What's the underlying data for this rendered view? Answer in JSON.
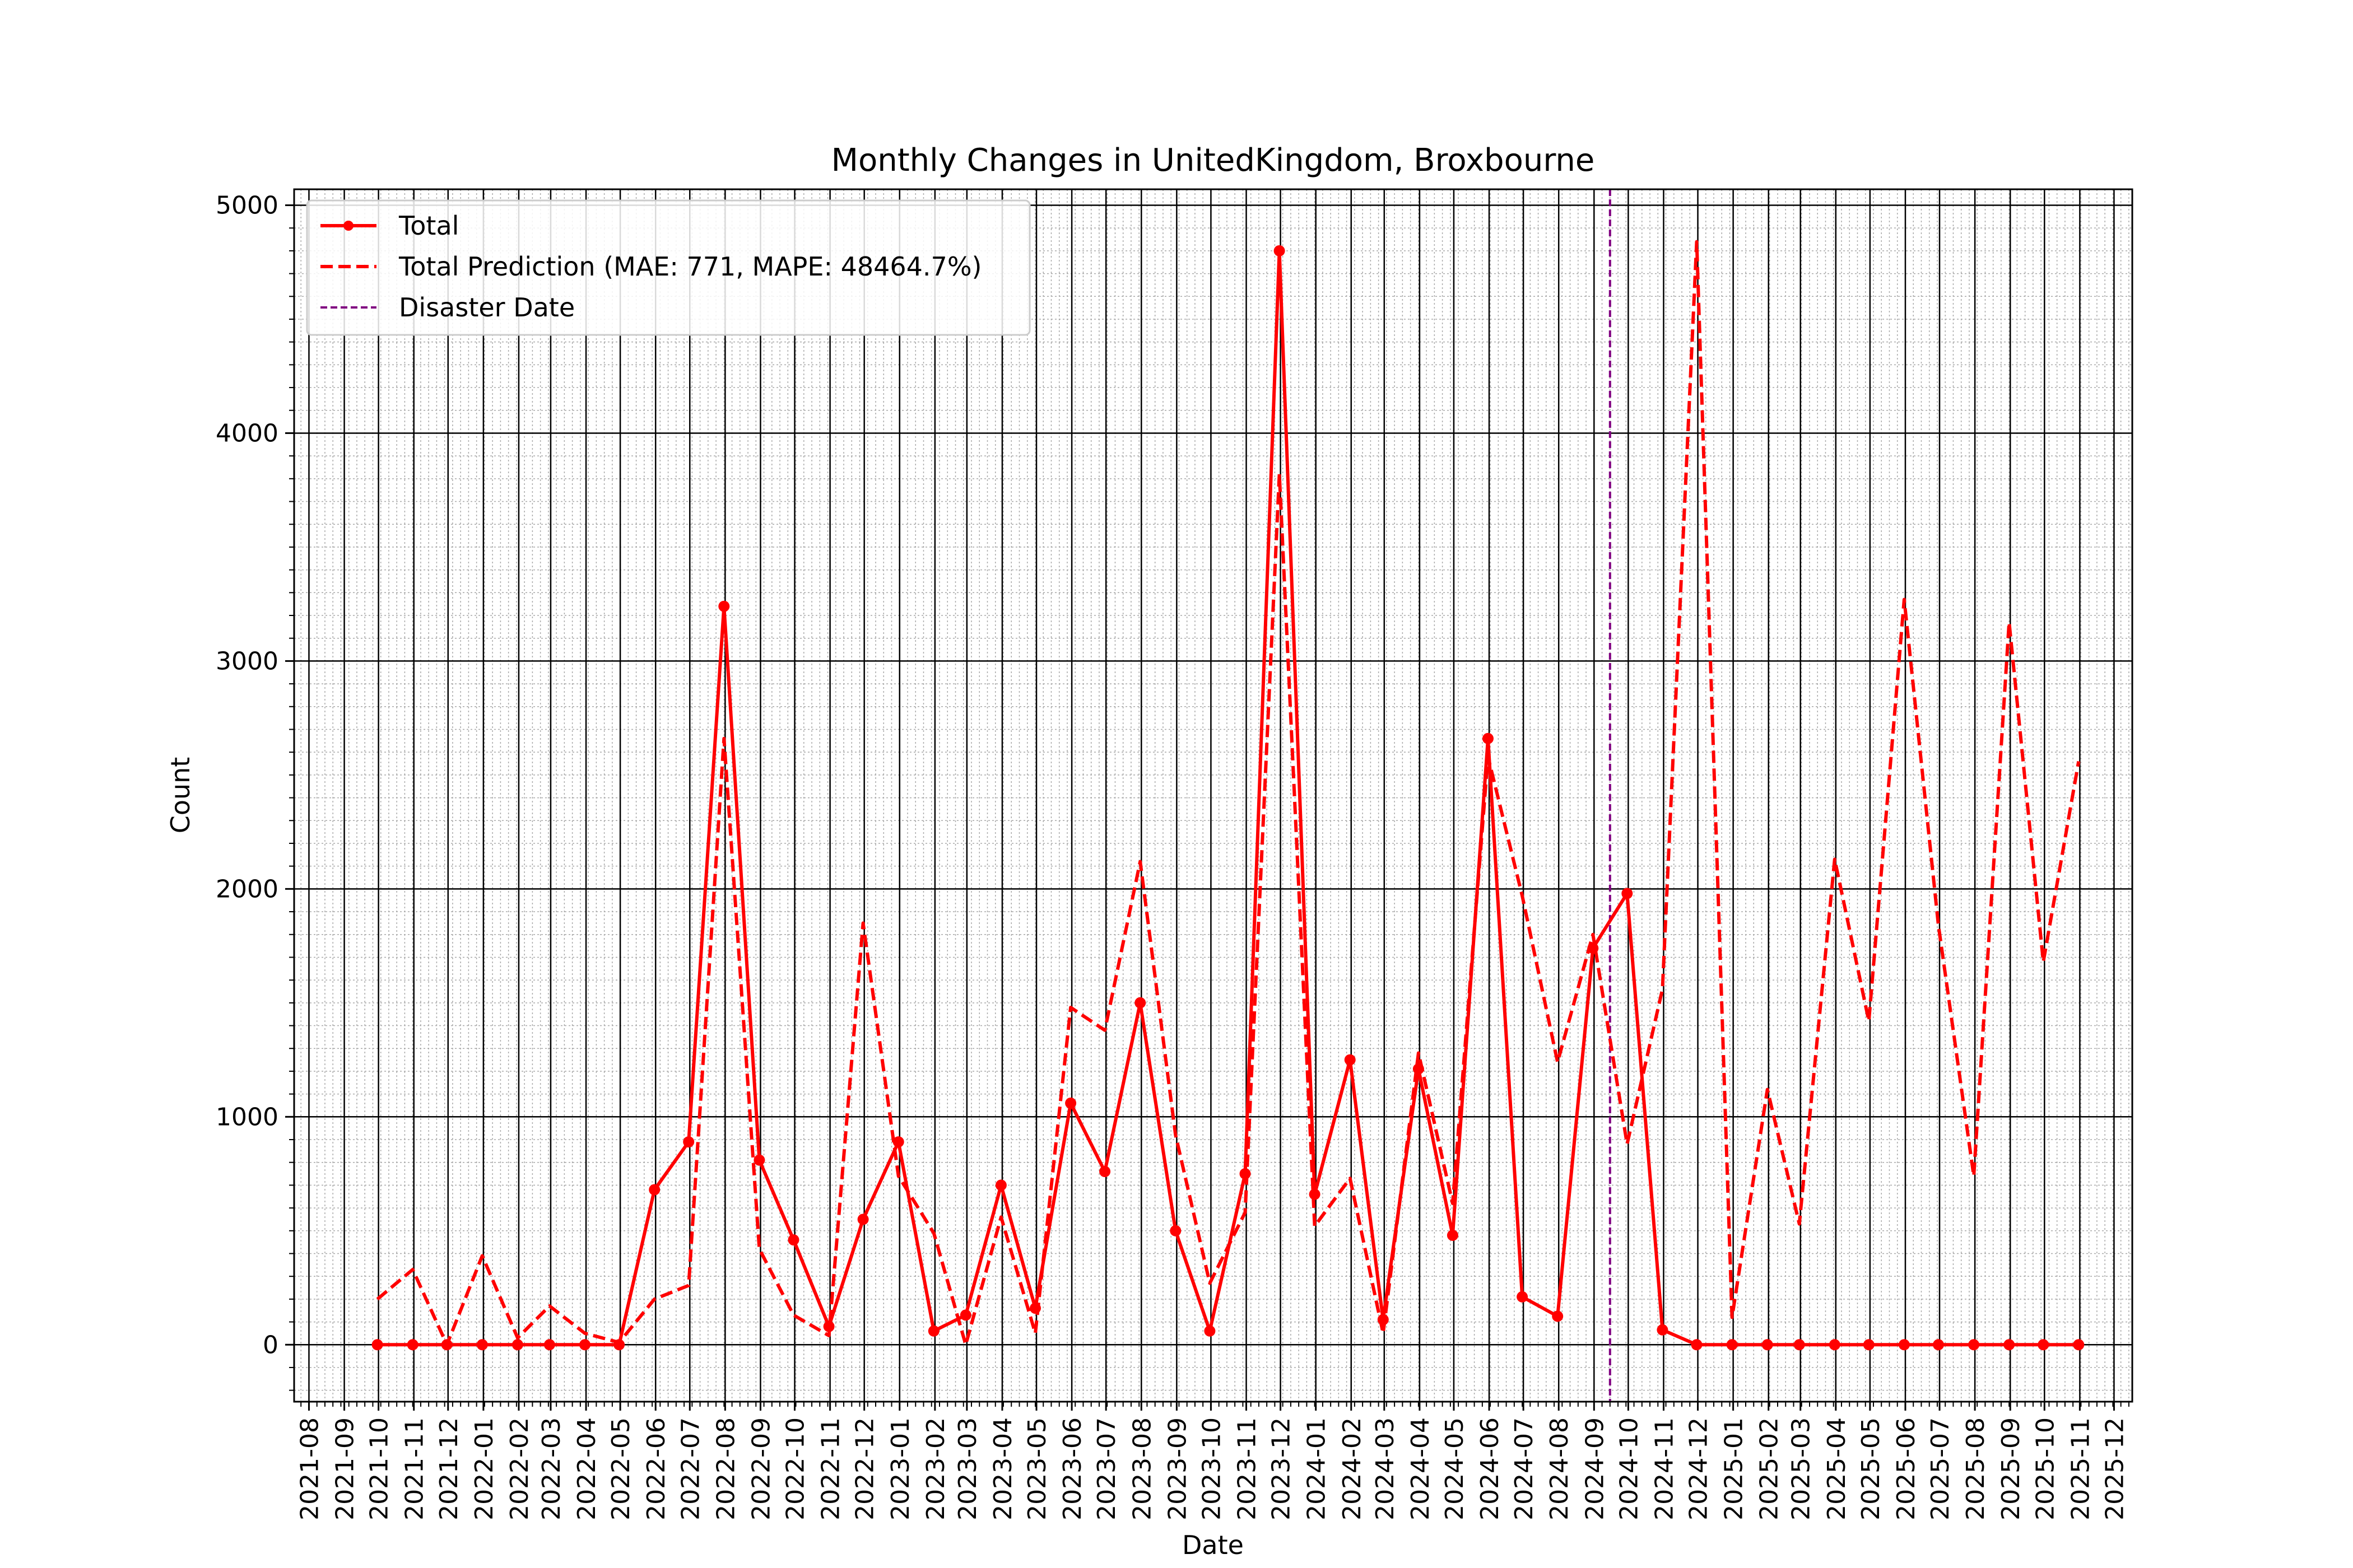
{
  "chart_data": {
    "type": "line",
    "title": "Monthly Changes in UnitedKingdom, Broxbourne",
    "xlabel": "Date",
    "ylabel": "Count",
    "ylim": [
      -250,
      5070
    ],
    "yticks": [
      0,
      1000,
      2000,
      3000,
      4000,
      5000
    ],
    "xlim": [
      "2021-07-19",
      "2025-12-17"
    ],
    "xticks": [
      "2021-08",
      "2021-09",
      "2021-10",
      "2021-11",
      "2021-12",
      "2022-01",
      "2022-02",
      "2022-03",
      "2022-04",
      "2022-05",
      "2022-06",
      "2022-07",
      "2022-08",
      "2022-09",
      "2022-10",
      "2022-11",
      "2022-12",
      "2023-01",
      "2023-02",
      "2023-03",
      "2023-04",
      "2023-05",
      "2023-06",
      "2023-07",
      "2023-08",
      "2023-09",
      "2023-10",
      "2023-11",
      "2023-12",
      "2024-01",
      "2024-02",
      "2024-03",
      "2024-04",
      "2024-05",
      "2024-06",
      "2024-07",
      "2024-08",
      "2024-09",
      "2024-10",
      "2024-11",
      "2024-12",
      "2025-01",
      "2025-02",
      "2025-03",
      "2025-04",
      "2025-05",
      "2025-06",
      "2025-07",
      "2025-08",
      "2025-09",
      "2025-10",
      "2025-11",
      "2025-12"
    ],
    "grid": true,
    "legend_position": "upper-left",
    "series": [
      {
        "name": "Total",
        "style": "solid-marker",
        "color": "#ff0000",
        "x": [
          "2021-09-30",
          "2021-10-31",
          "2021-11-30",
          "2021-12-31",
          "2022-01-31",
          "2022-02-28",
          "2022-03-31",
          "2022-04-30",
          "2022-05-31",
          "2022-06-30",
          "2022-07-31",
          "2022-08-31",
          "2022-09-30",
          "2022-10-31",
          "2022-11-30",
          "2022-12-31",
          "2023-01-31",
          "2023-02-28",
          "2023-03-31",
          "2023-04-30",
          "2023-05-31",
          "2023-06-30",
          "2023-07-31",
          "2023-08-31",
          "2023-09-30",
          "2023-10-31",
          "2023-11-30",
          "2023-12-31",
          "2024-01-31",
          "2024-02-29",
          "2024-03-31",
          "2024-04-30",
          "2024-05-31",
          "2024-06-30",
          "2024-07-31",
          "2024-08-31",
          "2024-09-30",
          "2024-10-31",
          "2024-11-30",
          "2024-12-31",
          "2025-01-31",
          "2025-02-28",
          "2025-03-31",
          "2025-04-30",
          "2025-05-31",
          "2025-06-30",
          "2025-07-31",
          "2025-08-31",
          "2025-09-30",
          "2025-10-31"
        ],
        "y": [
          0,
          0,
          0,
          0,
          0,
          0,
          0,
          0,
          680,
          890,
          3240,
          810,
          460,
          80,
          550,
          890,
          60,
          130,
          700,
          160,
          1060,
          760,
          1500,
          500,
          60,
          750,
          4800,
          660,
          1250,
          110,
          1210,
          480,
          2660,
          210,
          125,
          1740,
          1980,
          65,
          0,
          0,
          0,
          0,
          0,
          0,
          0,
          0,
          0,
          0,
          0,
          0
        ]
      },
      {
        "name": "Total Prediction (MAE: 771, MAPE: 48464.7%)",
        "style": "dashed",
        "color": "#ff0000",
        "x": [
          "2021-09-30",
          "2021-10-31",
          "2021-11-30",
          "2021-12-31",
          "2022-01-31",
          "2022-02-28",
          "2022-03-31",
          "2022-04-30",
          "2022-05-31",
          "2022-06-30",
          "2022-07-31",
          "2022-08-31",
          "2022-09-30",
          "2022-10-31",
          "2022-11-30",
          "2022-12-31",
          "2023-01-31",
          "2023-02-28",
          "2023-03-31",
          "2023-04-30",
          "2023-05-31",
          "2023-06-30",
          "2023-07-31",
          "2023-08-31",
          "2023-09-30",
          "2023-10-31",
          "2023-11-30",
          "2023-12-31",
          "2024-01-31",
          "2024-02-29",
          "2024-03-31",
          "2024-04-30",
          "2024-05-31",
          "2024-06-30",
          "2024-07-31",
          "2024-08-31",
          "2024-09-30",
          "2024-10-31",
          "2024-11-30",
          "2024-12-31",
          "2025-01-31",
          "2025-02-28",
          "2025-03-31",
          "2025-04-30",
          "2025-05-31",
          "2025-06-30",
          "2025-07-31",
          "2025-08-31",
          "2025-09-30",
          "2025-10-31"
        ],
        "y": [
          200,
          330,
          0,
          390,
          30,
          170,
          50,
          10,
          200,
          260,
          2660,
          420,
          130,
          40,
          1850,
          740,
          490,
          0,
          560,
          50,
          1480,
          1380,
          2120,
          920,
          270,
          580,
          3820,
          520,
          730,
          50,
          1280,
          620,
          2580,
          1970,
          1240,
          1800,
          880,
          1560,
          4840,
          120,
          1120,
          530,
          2130,
          1420,
          3270,
          1840,
          740,
          3170,
          1680,
          2560
        ]
      }
    ],
    "annotations": [
      {
        "type": "vline",
        "label": "Disaster Date",
        "x": "2024-09-15",
        "color": "#800080",
        "style": "dashed"
      }
    ]
  }
}
